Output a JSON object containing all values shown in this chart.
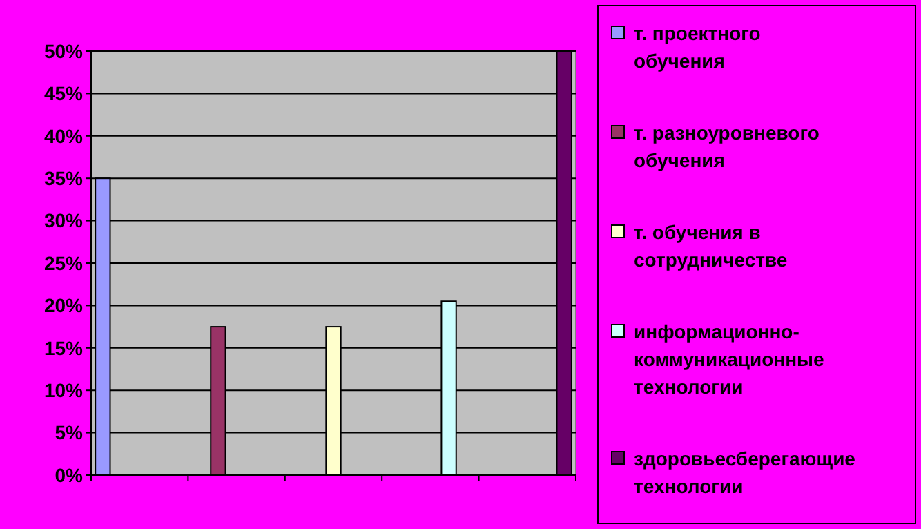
{
  "chart_data": {
    "type": "bar",
    "categories": [
      null,
      null,
      null,
      null,
      null
    ],
    "series": [
      {
        "name": "т. проектного обучения",
        "color": "#9999ff",
        "values": [
          35,
          null,
          null,
          null,
          null
        ]
      },
      {
        "name": "т. разноуровневого обучения",
        "color": "#993366",
        "values": [
          null,
          17.5,
          null,
          null,
          null
        ]
      },
      {
        "name": "т. обучения в сотрудничестве",
        "color": "#ffffcc",
        "values": [
          null,
          null,
          17.5,
          null,
          null
        ]
      },
      {
        "name": "информационно-коммуникационные технологии",
        "color": "#ccffff",
        "values": [
          null,
          null,
          null,
          20.5,
          null
        ]
      },
      {
        "name": "здоровьесберегающие технологии",
        "color": "#660066",
        "values": [
          null,
          null,
          null,
          null,
          50
        ]
      }
    ],
    "ylim": [
      0,
      50
    ],
    "yticks": [
      {
        "value": 0,
        "label": "0%"
      },
      {
        "value": 5,
        "label": "5%"
      },
      {
        "value": 10,
        "label": "10%"
      },
      {
        "value": 15,
        "label": "15%"
      },
      {
        "value": 20,
        "label": "20%"
      },
      {
        "value": 25,
        "label": "25%"
      },
      {
        "value": 30,
        "label": "30%"
      },
      {
        "value": 35,
        "label": "35%"
      },
      {
        "value": 40,
        "label": "40%"
      },
      {
        "value": 45,
        "label": "45%"
      },
      {
        "value": 50,
        "label": "50%"
      }
    ],
    "grid": "y",
    "legend": "right"
  }
}
